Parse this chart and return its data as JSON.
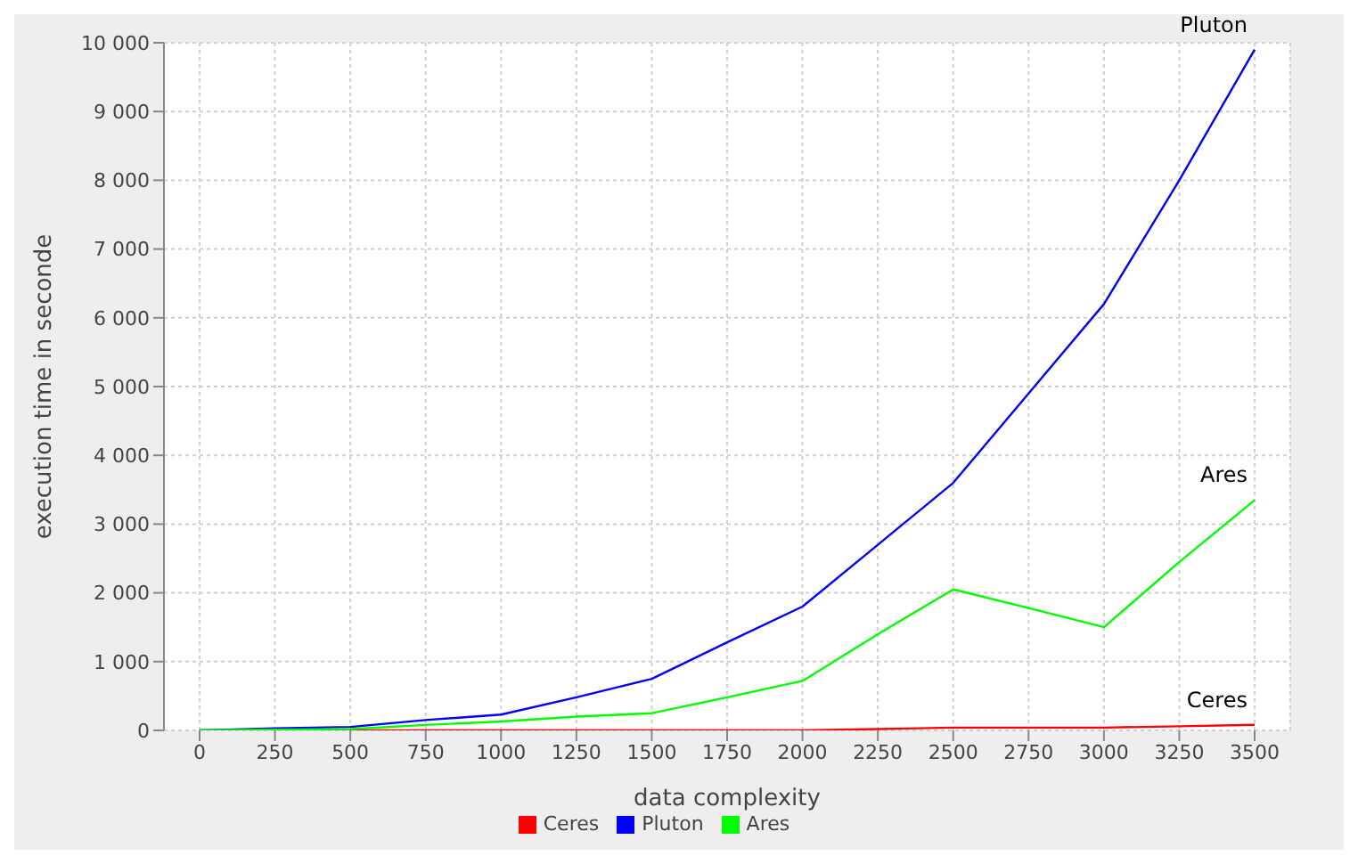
{
  "chart_data": {
    "type": "line",
    "xlabel": "data complexity",
    "ylabel": "execution time in seconde",
    "categories": [
      "0",
      "250",
      "500",
      "750",
      "1000",
      "1250",
      "1500",
      "1750",
      "2000",
      "2250",
      "2500",
      "2750",
      "3000",
      "3250",
      "3500"
    ],
    "series": [
      {
        "name": "Ceres",
        "color": "#ff0000",
        "values": [
          0,
          0,
          0,
          0,
          0,
          0,
          0,
          0,
          0,
          20,
          40,
          40,
          40,
          60,
          80
        ]
      },
      {
        "name": "Pluton",
        "color": "#0000ff",
        "values": [
          0,
          30,
          50,
          150,
          230,
          480,
          750,
          1280,
          1800,
          2700,
          3600,
          4900,
          6200,
          8000,
          9900
        ]
      },
      {
        "name": "Ares",
        "color": "#00ff00",
        "values": [
          0,
          10,
          20,
          80,
          130,
          200,
          250,
          480,
          720,
          1400,
          2050,
          1780,
          1500,
          2450,
          3350
        ]
      }
    ],
    "ylim": [
      0,
      10000
    ],
    "yticks": [
      0,
      {
        "value": 1000,
        "label": "1 000"
      },
      {
        "value": 2000,
        "label": "2 000"
      },
      {
        "value": 3000,
        "label": "3 000"
      },
      {
        "value": 4000,
        "label": "4 000"
      },
      {
        "value": 5000,
        "label": "5 000"
      },
      {
        "value": 6000,
        "label": "6 000"
      },
      {
        "value": 7000,
        "label": "7 000"
      },
      {
        "value": 8000,
        "label": "8 000"
      },
      {
        "value": 9000,
        "label": "9 000"
      },
      {
        "value": 10000,
        "label": "10 000"
      }
    ],
    "grid": true,
    "legend": "bottom",
    "marker": "none",
    "line_style": "solid"
  }
}
